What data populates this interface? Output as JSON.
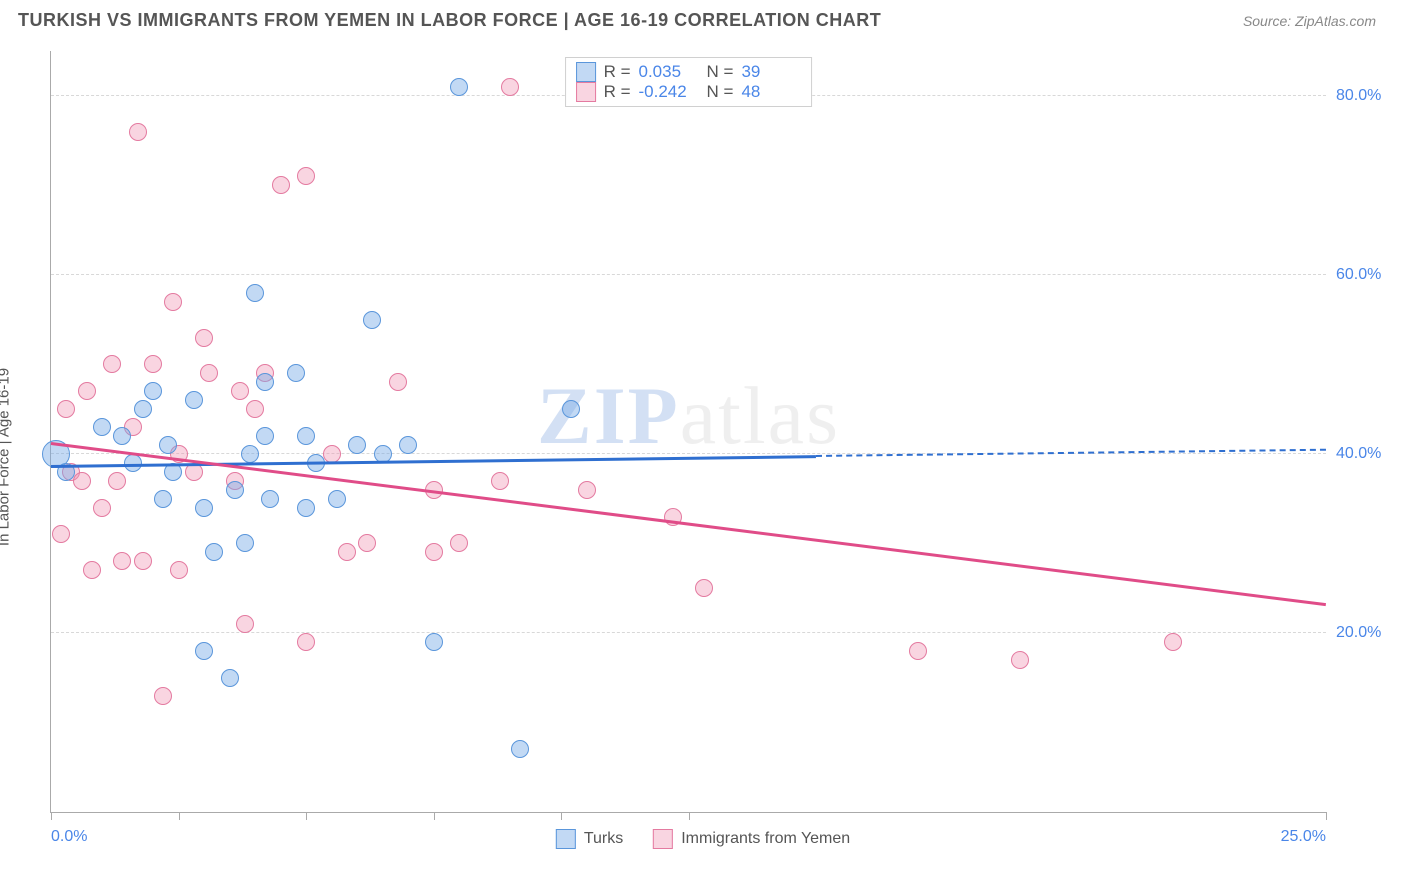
{
  "header": {
    "title": "TURKISH VS IMMIGRANTS FROM YEMEN IN LABOR FORCE | AGE 16-19 CORRELATION CHART",
    "source": "Source: ZipAtlas.com"
  },
  "chart": {
    "type": "scatter",
    "ylabel": "In Labor Force | Age 16-19",
    "xlim": [
      0,
      25
    ],
    "ylim": [
      0,
      85
    ],
    "yticks": [
      {
        "v": 20,
        "label": "20.0%"
      },
      {
        "v": 40,
        "label": "40.0%"
      },
      {
        "v": 60,
        "label": "60.0%"
      },
      {
        "v": 80,
        "label": "80.0%"
      }
    ],
    "xtick_positions": [
      0,
      2.5,
      5,
      7.5,
      10,
      12.5,
      25
    ],
    "xtick_labels": [
      {
        "v": 0,
        "label": "0.0%"
      },
      {
        "v": 25,
        "label": "25.0%"
      }
    ],
    "background_color": "#ffffff",
    "grid_color": "#d8d8d8",
    "series": {
      "turks": {
        "label": "Turks",
        "marker_fill": "rgba(120,170,230,0.45)",
        "marker_stroke": "#5a96db",
        "marker_radius": 9,
        "trend_color": "#2f6fd0",
        "trend_start": {
          "x": 0,
          "y": 38.5
        },
        "trend_end_solid": {
          "x": 15,
          "y": 39.6
        },
        "trend_end_dashed": {
          "x": 25,
          "y": 40.3
        },
        "r_value": "0.035",
        "n_value": "39",
        "points": [
          {
            "x": 0.1,
            "y": 40,
            "r": 14
          },
          {
            "x": 0.3,
            "y": 38
          },
          {
            "x": 1.0,
            "y": 43
          },
          {
            "x": 1.4,
            "y": 42
          },
          {
            "x": 1.6,
            "y": 39
          },
          {
            "x": 1.8,
            "y": 45
          },
          {
            "x": 2.0,
            "y": 47
          },
          {
            "x": 2.2,
            "y": 35
          },
          {
            "x": 2.3,
            "y": 41
          },
          {
            "x": 2.4,
            "y": 38
          },
          {
            "x": 2.8,
            "y": 46
          },
          {
            "x": 3.0,
            "y": 18
          },
          {
            "x": 3.0,
            "y": 34
          },
          {
            "x": 3.2,
            "y": 29
          },
          {
            "x": 3.5,
            "y": 15
          },
          {
            "x": 3.6,
            "y": 36
          },
          {
            "x": 3.8,
            "y": 30
          },
          {
            "x": 3.9,
            "y": 40
          },
          {
            "x": 4.0,
            "y": 58
          },
          {
            "x": 4.2,
            "y": 48
          },
          {
            "x": 4.2,
            "y": 42
          },
          {
            "x": 4.3,
            "y": 35
          },
          {
            "x": 4.8,
            "y": 49
          },
          {
            "x": 5.0,
            "y": 34
          },
          {
            "x": 5.0,
            "y": 42
          },
          {
            "x": 5.2,
            "y": 39
          },
          {
            "x": 5.6,
            "y": 35
          },
          {
            "x": 6.0,
            "y": 41
          },
          {
            "x": 6.3,
            "y": 55
          },
          {
            "x": 6.5,
            "y": 40
          },
          {
            "x": 7.0,
            "y": 41
          },
          {
            "x": 7.5,
            "y": 19
          },
          {
            "x": 8.0,
            "y": 81
          },
          {
            "x": 9.2,
            "y": 7
          },
          {
            "x": 10.2,
            "y": 45
          }
        ]
      },
      "yemen": {
        "label": "Immigrants from Yemen",
        "marker_fill": "rgba(240,150,180,0.4)",
        "marker_stroke": "#e47aa0",
        "marker_radius": 9,
        "trend_color": "#e04c88",
        "trend_start": {
          "x": 0,
          "y": 41
        },
        "trend_end_solid": {
          "x": 25,
          "y": 23
        },
        "r_value": "-0.242",
        "n_value": "48",
        "points": [
          {
            "x": 0.2,
            "y": 31
          },
          {
            "x": 0.3,
            "y": 45
          },
          {
            "x": 0.4,
            "y": 38
          },
          {
            "x": 0.6,
            "y": 37
          },
          {
            "x": 0.7,
            "y": 47
          },
          {
            "x": 0.8,
            "y": 27
          },
          {
            "x": 1.0,
            "y": 34
          },
          {
            "x": 1.2,
            "y": 50
          },
          {
            "x": 1.3,
            "y": 37
          },
          {
            "x": 1.4,
            "y": 28
          },
          {
            "x": 1.6,
            "y": 43
          },
          {
            "x": 1.7,
            "y": 76
          },
          {
            "x": 1.8,
            "y": 28
          },
          {
            "x": 2.0,
            "y": 50
          },
          {
            "x": 2.2,
            "y": 13
          },
          {
            "x": 2.4,
            "y": 57
          },
          {
            "x": 2.5,
            "y": 40
          },
          {
            "x": 2.5,
            "y": 27
          },
          {
            "x": 2.8,
            "y": 38
          },
          {
            "x": 3.0,
            "y": 53
          },
          {
            "x": 3.1,
            "y": 49
          },
          {
            "x": 3.6,
            "y": 37
          },
          {
            "x": 3.7,
            "y": 47
          },
          {
            "x": 3.8,
            "y": 21
          },
          {
            "x": 4.0,
            "y": 45
          },
          {
            "x": 4.2,
            "y": 49
          },
          {
            "x": 4.5,
            "y": 70
          },
          {
            "x": 5.0,
            "y": 71
          },
          {
            "x": 5.0,
            "y": 19
          },
          {
            "x": 5.5,
            "y": 40
          },
          {
            "x": 5.8,
            "y": 29
          },
          {
            "x": 6.2,
            "y": 30
          },
          {
            "x": 6.8,
            "y": 48
          },
          {
            "x": 7.5,
            "y": 29
          },
          {
            "x": 7.5,
            "y": 36
          },
          {
            "x": 8.0,
            "y": 30
          },
          {
            "x": 8.8,
            "y": 37
          },
          {
            "x": 9.0,
            "y": 81
          },
          {
            "x": 10.5,
            "y": 36
          },
          {
            "x": 12.2,
            "y": 33
          },
          {
            "x": 12.8,
            "y": 25
          },
          {
            "x": 17.0,
            "y": 18
          },
          {
            "x": 19.0,
            "y": 17
          },
          {
            "x": 22.0,
            "y": 19
          }
        ]
      }
    },
    "watermark": {
      "prefix": "ZIP",
      "suffix": "atlas"
    },
    "legend_r": "R =",
    "legend_n": "N ="
  }
}
